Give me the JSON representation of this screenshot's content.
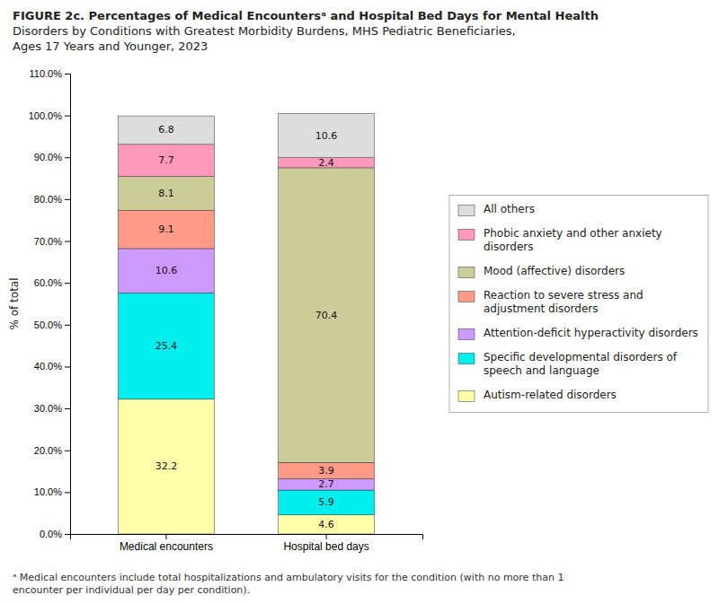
{
  "chart_data": {
    "type": "bar",
    "stacked": true,
    "title": "FIGURE 2c. Percentages of Medical Encountersᵃ and Hospital Bed Days for Mental Health\nDisorders by Conditions with Greatest Morbidity Burdens, MHS Pediatric Beneficiaries,\nAges 17 Years and Younger, 2023",
    "annotations": [
      "ᵃ Medical encounters include total hospitalizations and ambulatory visits for the condition (with no more than 1\nencounter per individual per day per condition)."
    ],
    "y_label": "% of total",
    "categories": [
      "Medical encounters",
      "Hospital bed days"
    ],
    "series": [
      {
        "name": "Autism-related disorders",
        "color": "#FFFFAA",
        "values": [
          32.2,
          4.6
        ]
      },
      {
        "name": "Specific developmental disorders of speech and language",
        "color": "#00EEEE",
        "values": [
          25.4,
          5.9
        ]
      },
      {
        "name": "Attention-deficit hyperactivity disorders",
        "color": "#CC99FF",
        "values": [
          10.6,
          2.7
        ]
      },
      {
        "name": "Reaction to severe stress and adjustment disorders",
        "color": "#FF9988",
        "values": [
          9.1,
          3.9
        ]
      },
      {
        "name": "Mood (affective) disorders",
        "color": "#CCCC99",
        "values": [
          8.1,
          70.4
        ]
      },
      {
        "name": "Phobic anxiety and other anxiety disorders",
        "color": "#FF99BB",
        "values": [
          7.7,
          2.4
        ]
      },
      {
        "name": "All others",
        "color": "#DDDDDD",
        "values": [
          6.8,
          10.6
        ]
      }
    ],
    "ylim": [
      0,
      110
    ],
    "yticks": [
      {
        "value": 0,
        "label": "0.0%"
      },
      {
        "value": 10,
        "label": "10.0%"
      },
      {
        "value": 20,
        "label": "20.0%"
      },
      {
        "value": 30,
        "label": "30.0%"
      },
      {
        "value": 40,
        "label": "40.0%"
      },
      {
        "value": 50,
        "label": "50.0%"
      },
      {
        "value": 60,
        "label": "60.0%"
      },
      {
        "value": 70,
        "label": "70.0%"
      },
      {
        "value": 80,
        "label": "80.0%"
      },
      {
        "value": 90,
        "label": "90.0%"
      },
      {
        "value": 100,
        "label": "100.0%"
      },
      {
        "value": 110,
        "label": "110.0%"
      }
    ],
    "data_labels": true,
    "grid": false,
    "legend": "right"
  }
}
